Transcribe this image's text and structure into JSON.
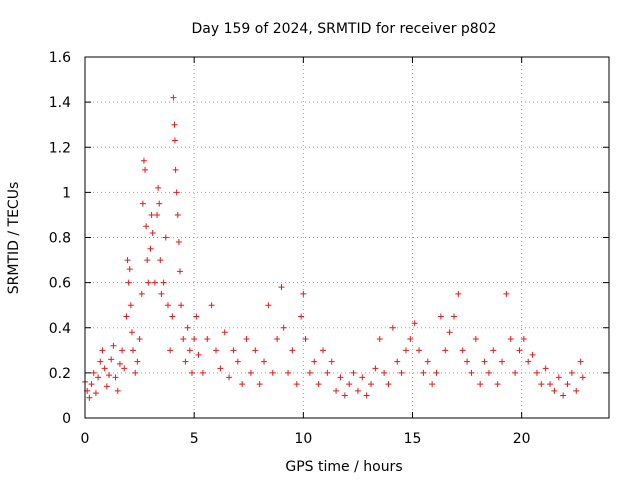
{
  "chart_data": {
    "type": "scatter",
    "title": "Day 159 of 2024, SRMTID for receiver p802",
    "xlabel": "GPS time / hours",
    "ylabel": "SRMTID / TECUs",
    "xlim": [
      0,
      24
    ],
    "ylim": [
      0,
      1.6
    ],
    "xticks": [
      "0",
      "5",
      "10",
      "15",
      "20"
    ],
    "yticks": [
      "0",
      "0.2",
      "0.4",
      "0.6",
      "0.8",
      "1",
      "1.2",
      "1.4",
      "1.6"
    ],
    "grid": true,
    "marker": "+",
    "color": "#e41a1c",
    "series": [
      {
        "name": "SRMTID",
        "points": [
          [
            0.0,
            0.16
          ],
          [
            0.1,
            0.12
          ],
          [
            0.2,
            0.09
          ],
          [
            0.3,
            0.15
          ],
          [
            0.4,
            0.2
          ],
          [
            0.5,
            0.11
          ],
          [
            0.6,
            0.18
          ],
          [
            0.7,
            0.25
          ],
          [
            0.8,
            0.3
          ],
          [
            0.9,
            0.22
          ],
          [
            1.0,
            0.14
          ],
          [
            1.1,
            0.19
          ],
          [
            1.2,
            0.26
          ],
          [
            1.3,
            0.32
          ],
          [
            1.4,
            0.18
          ],
          [
            1.5,
            0.12
          ],
          [
            1.6,
            0.24
          ],
          [
            1.7,
            0.3
          ],
          [
            1.8,
            0.22
          ],
          [
            1.9,
            0.45
          ],
          [
            1.95,
            0.7
          ],
          [
            2.0,
            0.6
          ],
          [
            2.05,
            0.66
          ],
          [
            2.1,
            0.5
          ],
          [
            2.15,
            0.38
          ],
          [
            2.2,
            0.3
          ],
          [
            2.3,
            0.2
          ],
          [
            2.4,
            0.25
          ],
          [
            2.5,
            0.35
          ],
          [
            2.6,
            0.55
          ],
          [
            2.65,
            0.95
          ],
          [
            2.7,
            1.14
          ],
          [
            2.75,
            1.1
          ],
          [
            2.8,
            0.85
          ],
          [
            2.85,
            0.7
          ],
          [
            2.9,
            0.6
          ],
          [
            3.0,
            0.75
          ],
          [
            3.05,
            0.9
          ],
          [
            3.1,
            0.82
          ],
          [
            3.2,
            0.6
          ],
          [
            3.3,
            0.9
          ],
          [
            3.35,
            1.02
          ],
          [
            3.4,
            0.95
          ],
          [
            3.45,
            0.7
          ],
          [
            3.5,
            0.55
          ],
          [
            3.6,
            0.6
          ],
          [
            3.7,
            0.8
          ],
          [
            3.8,
            0.5
          ],
          [
            3.9,
            0.3
          ],
          [
            4.0,
            0.45
          ],
          [
            4.05,
            1.42
          ],
          [
            4.1,
            1.3
          ],
          [
            4.12,
            1.23
          ],
          [
            4.15,
            1.1
          ],
          [
            4.2,
            1.0
          ],
          [
            4.25,
            0.9
          ],
          [
            4.3,
            0.78
          ],
          [
            4.35,
            0.65
          ],
          [
            4.4,
            0.5
          ],
          [
            4.5,
            0.35
          ],
          [
            4.6,
            0.25
          ],
          [
            4.7,
            0.4
          ],
          [
            4.8,
            0.3
          ],
          [
            4.9,
            0.2
          ],
          [
            5.0,
            0.35
          ],
          [
            5.1,
            0.45
          ],
          [
            5.2,
            0.28
          ],
          [
            5.4,
            0.2
          ],
          [
            5.6,
            0.35
          ],
          [
            5.8,
            0.5
          ],
          [
            6.0,
            0.3
          ],
          [
            6.2,
            0.22
          ],
          [
            6.4,
            0.38
          ],
          [
            6.6,
            0.18
          ],
          [
            6.8,
            0.3
          ],
          [
            7.0,
            0.25
          ],
          [
            7.2,
            0.15
          ],
          [
            7.4,
            0.35
          ],
          [
            7.6,
            0.2
          ],
          [
            7.8,
            0.3
          ],
          [
            8.0,
            0.15
          ],
          [
            8.2,
            0.25
          ],
          [
            8.4,
            0.5
          ],
          [
            8.6,
            0.2
          ],
          [
            8.8,
            0.35
          ],
          [
            9.0,
            0.58
          ],
          [
            9.1,
            0.4
          ],
          [
            9.3,
            0.2
          ],
          [
            9.5,
            0.3
          ],
          [
            9.7,
            0.15
          ],
          [
            9.9,
            0.45
          ],
          [
            10.0,
            0.55
          ],
          [
            10.1,
            0.35
          ],
          [
            10.3,
            0.2
          ],
          [
            10.5,
            0.25
          ],
          [
            10.7,
            0.15
          ],
          [
            10.9,
            0.3
          ],
          [
            11.1,
            0.2
          ],
          [
            11.3,
            0.25
          ],
          [
            11.5,
            0.12
          ],
          [
            11.7,
            0.18
          ],
          [
            11.9,
            0.1
          ],
          [
            12.1,
            0.15
          ],
          [
            12.3,
            0.2
          ],
          [
            12.5,
            0.12
          ],
          [
            12.7,
            0.18
          ],
          [
            12.9,
            0.1
          ],
          [
            13.1,
            0.15
          ],
          [
            13.3,
            0.22
          ],
          [
            13.5,
            0.35
          ],
          [
            13.7,
            0.2
          ],
          [
            13.9,
            0.15
          ],
          [
            14.1,
            0.4
          ],
          [
            14.3,
            0.25
          ],
          [
            14.5,
            0.2
          ],
          [
            14.7,
            0.3
          ],
          [
            14.9,
            0.35
          ],
          [
            15.1,
            0.42
          ],
          [
            15.3,
            0.3
          ],
          [
            15.5,
            0.2
          ],
          [
            15.7,
            0.25
          ],
          [
            15.9,
            0.15
          ],
          [
            16.1,
            0.2
          ],
          [
            16.3,
            0.45
          ],
          [
            16.5,
            0.3
          ],
          [
            16.7,
            0.38
          ],
          [
            16.9,
            0.45
          ],
          [
            17.1,
            0.55
          ],
          [
            17.3,
            0.3
          ],
          [
            17.5,
            0.25
          ],
          [
            17.7,
            0.2
          ],
          [
            17.9,
            0.35
          ],
          [
            18.1,
            0.15
          ],
          [
            18.3,
            0.25
          ],
          [
            18.5,
            0.2
          ],
          [
            18.7,
            0.3
          ],
          [
            18.9,
            0.15
          ],
          [
            19.1,
            0.25
          ],
          [
            19.3,
            0.55
          ],
          [
            19.5,
            0.35
          ],
          [
            19.7,
            0.2
          ],
          [
            19.9,
            0.3
          ],
          [
            20.1,
            0.35
          ],
          [
            20.3,
            0.25
          ],
          [
            20.5,
            0.28
          ],
          [
            20.7,
            0.2
          ],
          [
            20.9,
            0.15
          ],
          [
            21.1,
            0.22
          ],
          [
            21.3,
            0.15
          ],
          [
            21.5,
            0.12
          ],
          [
            21.7,
            0.18
          ],
          [
            21.9,
            0.1
          ],
          [
            22.1,
            0.15
          ],
          [
            22.3,
            0.2
          ],
          [
            22.5,
            0.12
          ],
          [
            22.7,
            0.25
          ],
          [
            22.8,
            0.18
          ]
        ]
      }
    ]
  }
}
